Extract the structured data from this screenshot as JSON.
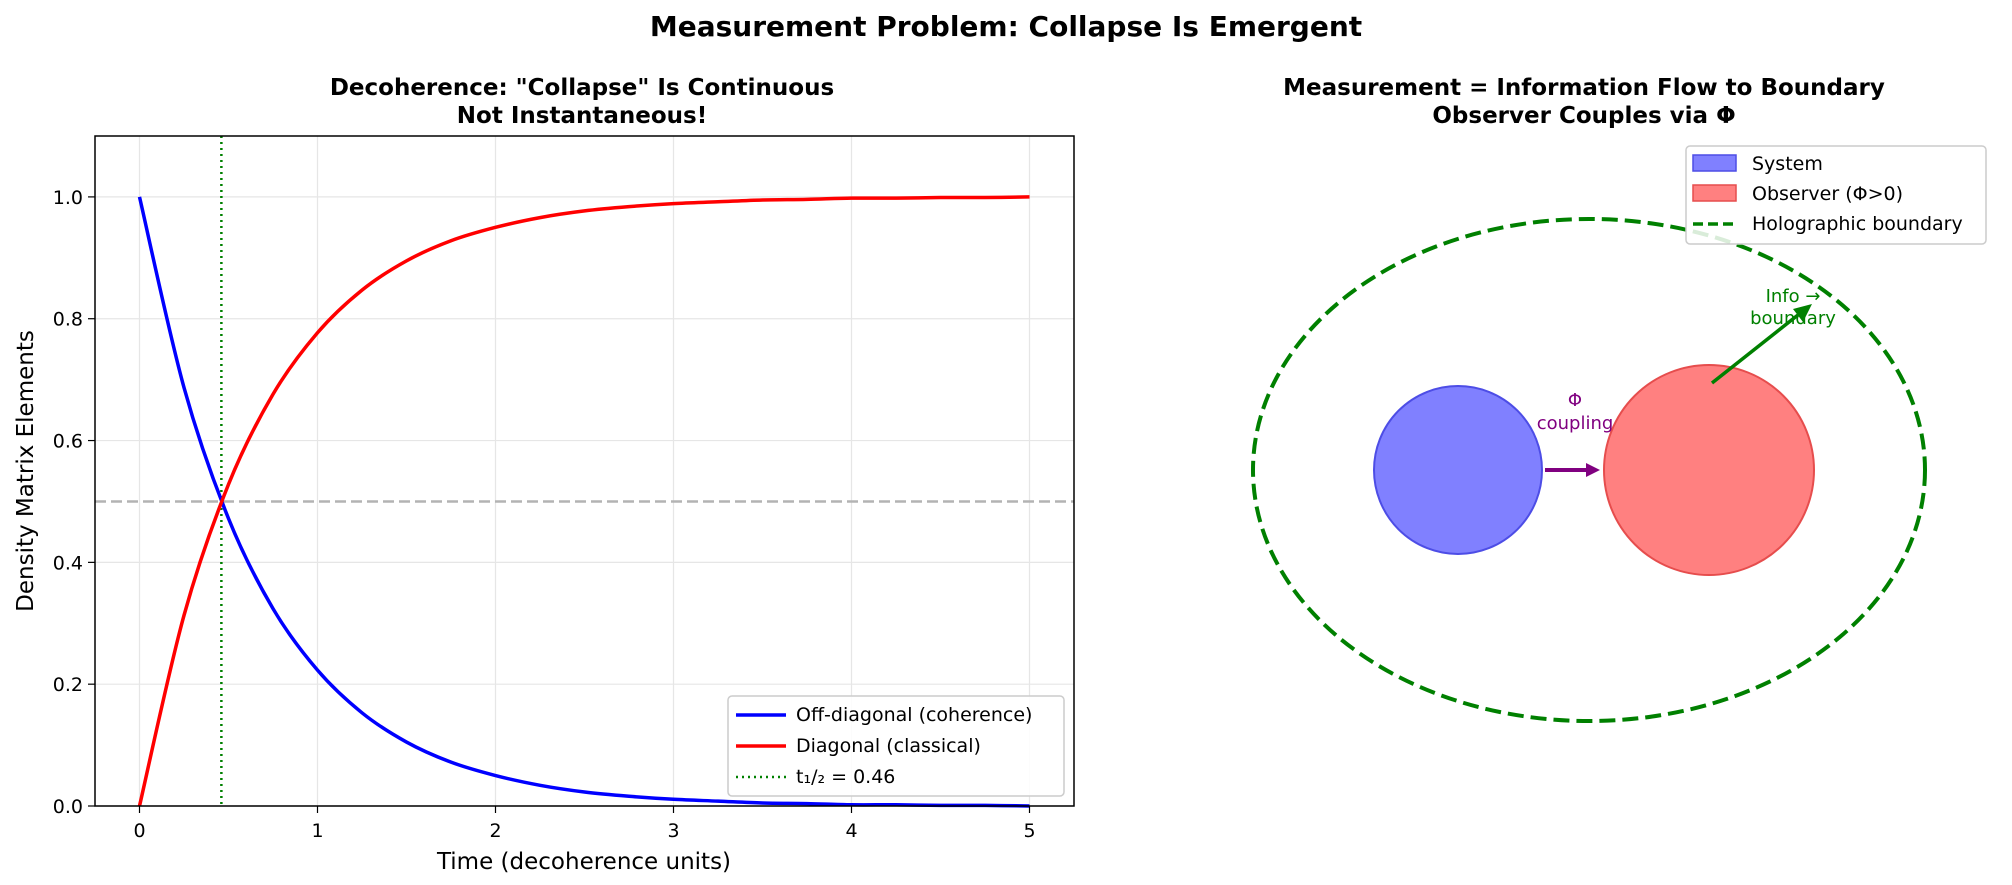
{
  "suptitle": "Measurement Problem: Collapse Is Emergent",
  "colors": {
    "coherence": "#0000ff",
    "classical": "#ff0000",
    "half_time": "#008000",
    "reference": "#b3b3b3",
    "system_fill": "#8080ff",
    "system_edge": "#4d4de6",
    "observer_fill": "#ff8080",
    "observer_edge": "#e64d4d",
    "coupling": "#800080",
    "boundary": "#008000"
  },
  "chart_data": [
    {
      "type": "line",
      "title_line1": "Decoherence: \"Collapse\" Is Continuous",
      "title_line2": "Not Instantaneous!",
      "xlabel": "Time (decoherence units)",
      "ylabel": "Density Matrix Elements",
      "xlim": [
        -0.25,
        5.25
      ],
      "ylim": [
        0,
        1.1
      ],
      "xticks": [
        0,
        1,
        2,
        3,
        4,
        5
      ],
      "yticks": [
        "0.0",
        "0.2",
        "0.4",
        "0.6",
        "0.8",
        "1.0"
      ],
      "grid": true,
      "legend_position": "lower-right",
      "x": [
        0,
        0.25,
        0.5,
        0.75,
        1,
        1.25,
        1.5,
        1.75,
        2,
        2.25,
        2.5,
        2.75,
        3,
        3.25,
        3.5,
        3.75,
        4,
        4.25,
        4.5,
        4.75,
        5
      ],
      "series": [
        {
          "name": "Off-diagonal (coherence)",
          "color_key": "coherence",
          "values": [
            1.0,
            0.687,
            0.472,
            0.324,
            0.223,
            0.153,
            0.105,
            0.072,
            0.05,
            0.034,
            0.023,
            0.016,
            0.011,
            0.008,
            0.005,
            0.004,
            0.002,
            0.002,
            0.001,
            0.001,
            0.0
          ]
        },
        {
          "name": "Diagonal (classical)",
          "color_key": "classical",
          "values": [
            0.0,
            0.313,
            0.528,
            0.676,
            0.777,
            0.847,
            0.895,
            0.928,
            0.95,
            0.966,
            0.977,
            0.984,
            0.989,
            0.992,
            0.995,
            0.996,
            0.998,
            0.998,
            0.999,
            0.999,
            1.0
          ]
        }
      ],
      "half_time": {
        "label": "t₁/₂ = 0.46",
        "x": 0.46
      },
      "reference_line_y": 0.5
    },
    {
      "type": "diagram",
      "title_line1": "Measurement = Information Flow to Boundary",
      "title_line2": "Observer Couples via Φ",
      "legend": [
        {
          "label": "System",
          "kind": "patch",
          "color_key": "system_fill"
        },
        {
          "label": "Observer (Φ>0)",
          "kind": "patch",
          "color_key": "observer_fill"
        },
        {
          "label": "Holographic boundary",
          "kind": "dashed-line",
          "color_key": "boundary"
        }
      ],
      "coupling_label_line1": "Φ",
      "coupling_label_line2": "coupling",
      "info_label_line1": "Info →",
      "info_label_line2": "boundary"
    }
  ]
}
